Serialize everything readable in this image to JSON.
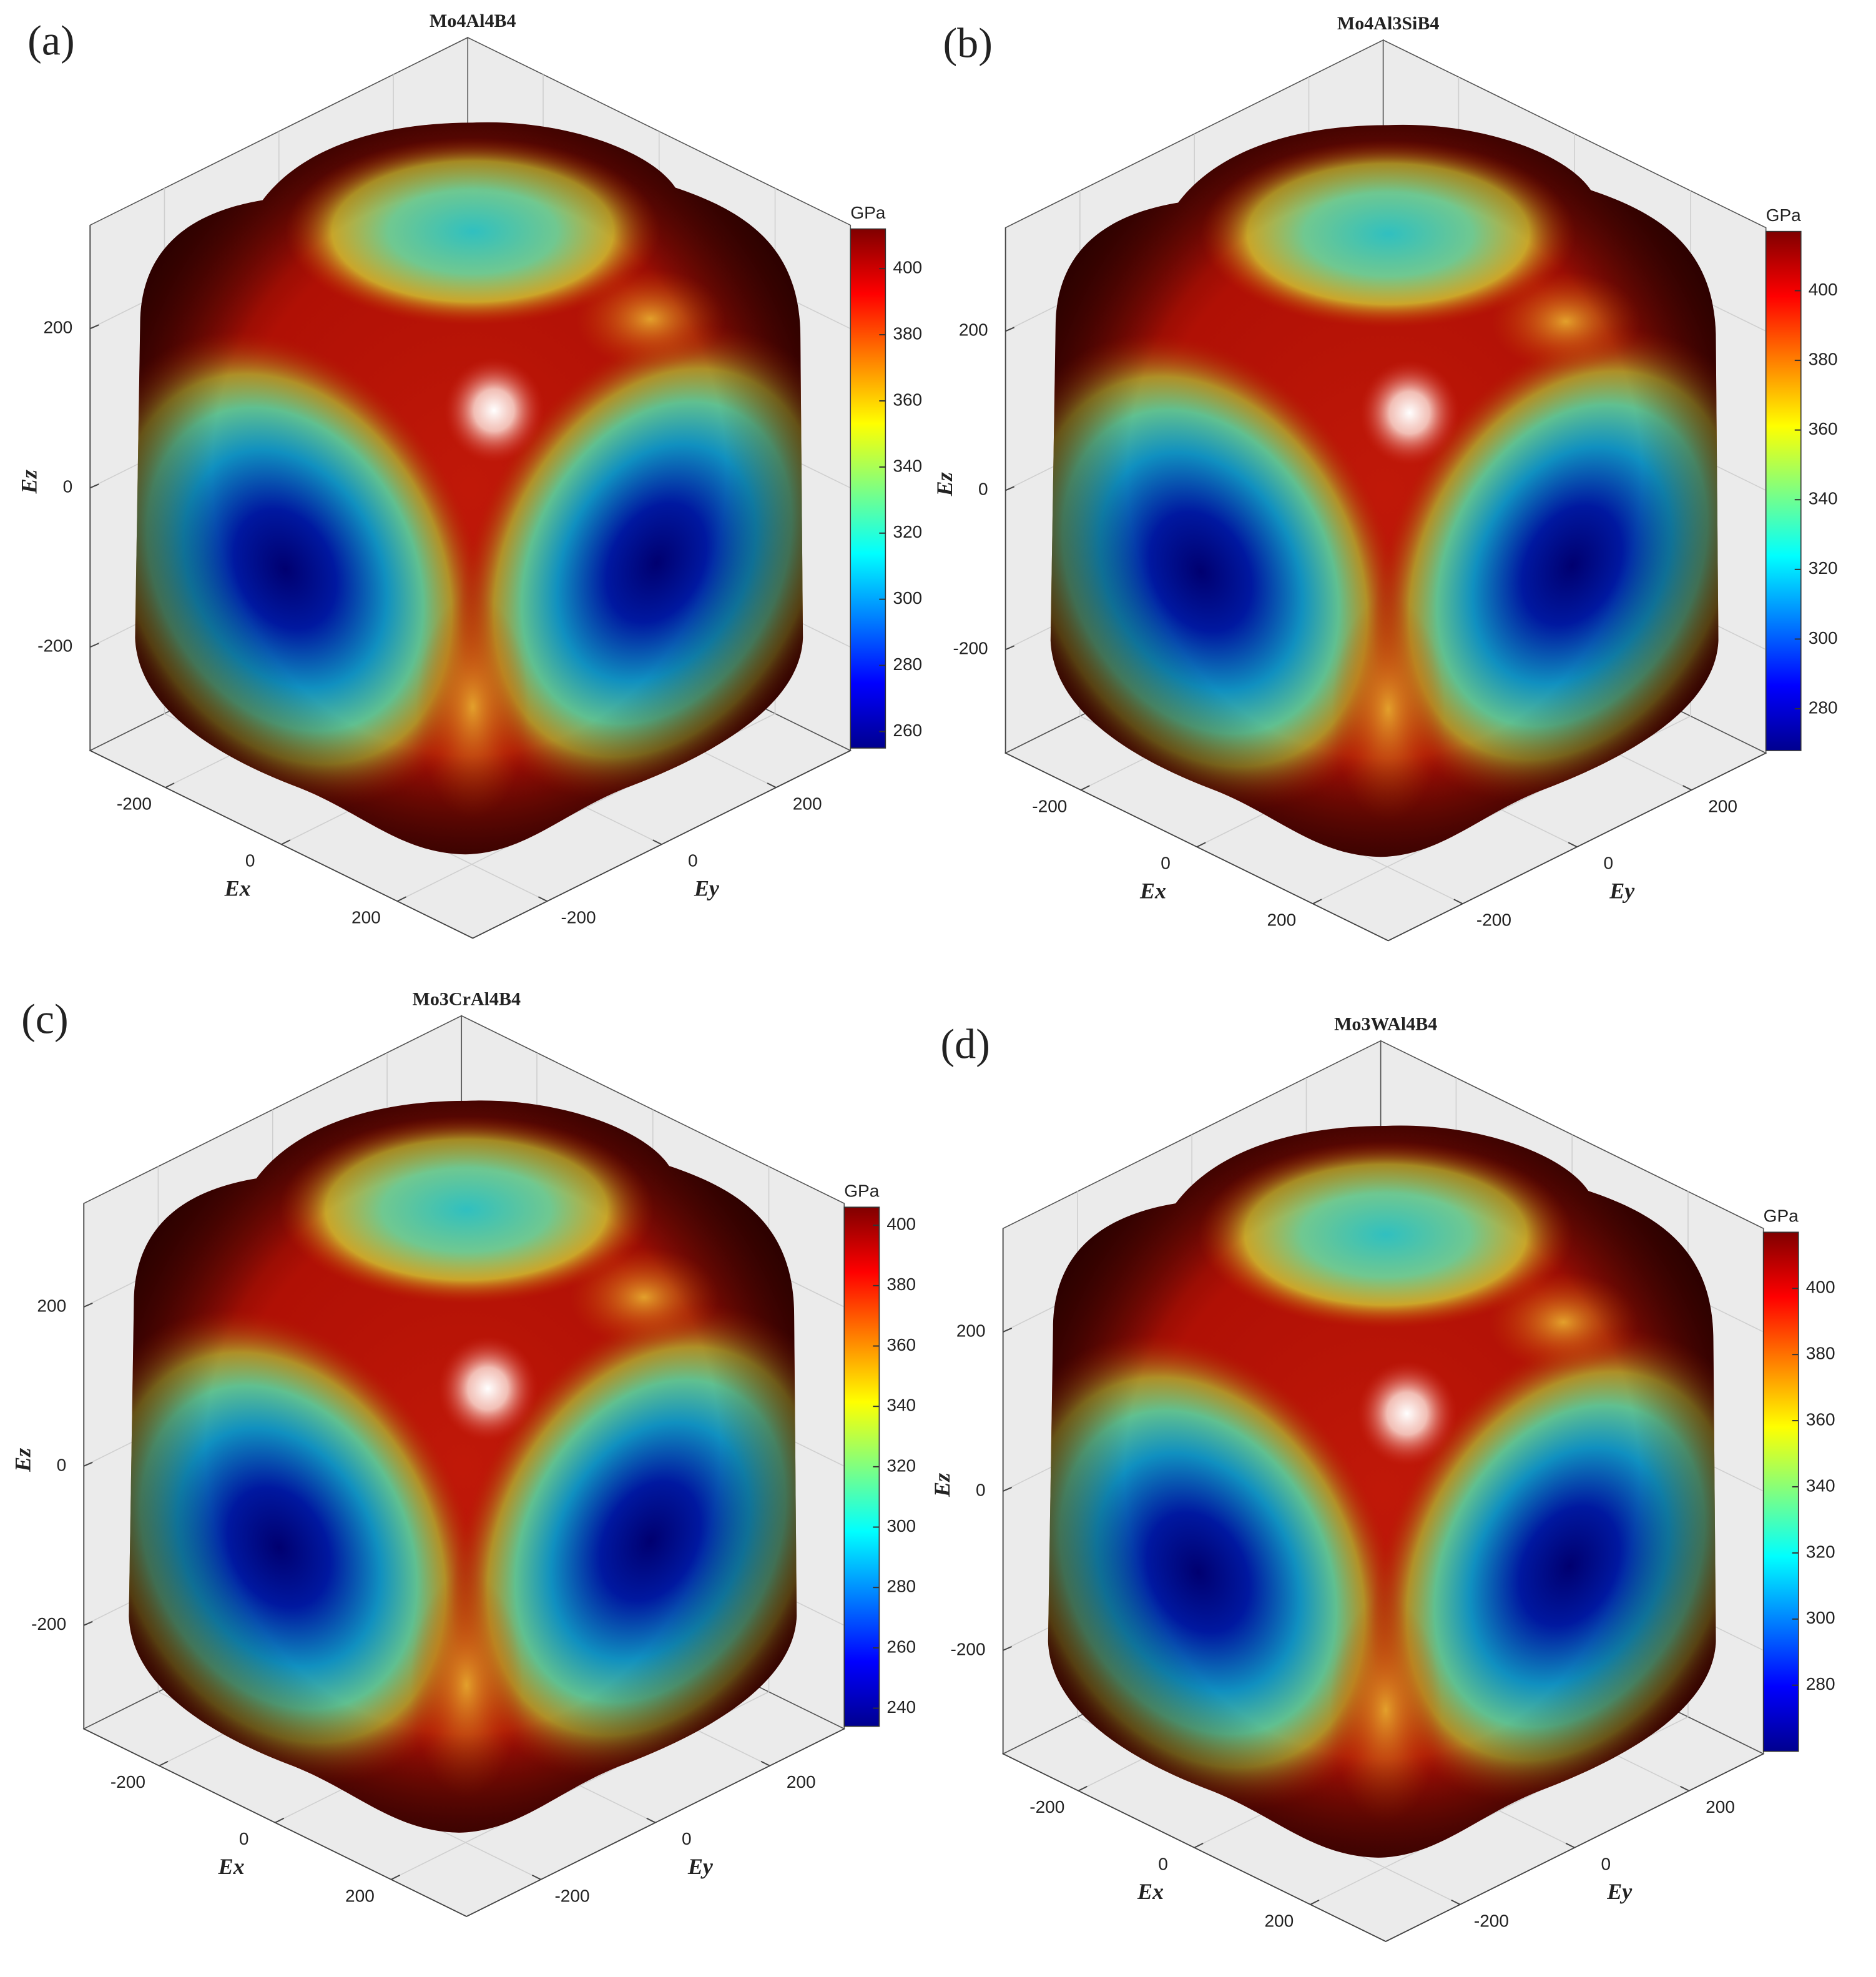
{
  "chart_data": [
    {
      "type": "surface3d",
      "panel_label": "(a)",
      "title": "Mo4Al4B4",
      "xlabel": "Ex",
      "ylabel": "Ey",
      "zlabel": "Ez",
      "xlim": [
        -330,
        330
      ],
      "ylim": [
        -330,
        330
      ],
      "zlim": [
        -330,
        330
      ],
      "xticks": [
        -200,
        0,
        200
      ],
      "yticks": [
        -200,
        0,
        200
      ],
      "zticks": [
        -200,
        0,
        200
      ],
      "grid": true,
      "colorbar": {
        "label": "GPa",
        "colormap": "jet",
        "clim": [
          255,
          412
        ],
        "ticks": [
          260,
          280,
          300,
          320,
          340,
          360,
          380,
          400
        ]
      }
    },
    {
      "type": "surface3d",
      "panel_label": "(b)",
      "title": "Mo4Al3SiB4",
      "xlabel": "Ex",
      "ylabel": "Ey",
      "zlabel": "Ez",
      "xlim": [
        -330,
        330
      ],
      "ylim": [
        -330,
        330
      ],
      "zlim": [
        -330,
        330
      ],
      "xticks": [
        -200,
        0,
        200
      ],
      "yticks": [
        -200,
        0,
        200
      ],
      "zticks": [
        -200,
        0,
        200
      ],
      "grid": true,
      "colorbar": {
        "label": "GPa",
        "colormap": "jet",
        "clim": [
          268,
          417
        ],
        "ticks": [
          280,
          300,
          320,
          340,
          360,
          380,
          400
        ]
      }
    },
    {
      "type": "surface3d",
      "panel_label": "(c)",
      "title": "Mo3CrAl4B4",
      "xlabel": "Ex",
      "ylabel": "Ey",
      "zlabel": "Ez",
      "xlim": [
        -330,
        330
      ],
      "ylim": [
        -330,
        330
      ],
      "zlim": [
        -330,
        330
      ],
      "xticks": [
        -200,
        0,
        200
      ],
      "yticks": [
        -200,
        0,
        200
      ],
      "zticks": [
        -200,
        0,
        200
      ],
      "grid": true,
      "colorbar": {
        "label": "GPa",
        "colormap": "jet",
        "clim": [
          234,
          406
        ],
        "ticks": [
          240,
          260,
          280,
          300,
          320,
          340,
          360,
          380,
          400
        ]
      }
    },
    {
      "type": "surface3d",
      "panel_label": "(d)",
      "title": "Mo3WAl4B4",
      "xlabel": "Ex",
      "ylabel": "Ey",
      "zlabel": "Ez",
      "xlim": [
        -330,
        330
      ],
      "ylim": [
        -330,
        330
      ],
      "zlim": [
        -330,
        330
      ],
      "xticks": [
        -200,
        0,
        200
      ],
      "yticks": [
        -200,
        0,
        200
      ],
      "zticks": [
        -200,
        0,
        200
      ],
      "grid": true,
      "colorbar": {
        "label": "GPa",
        "colormap": "jet",
        "clim": [
          260,
          417
        ],
        "ticks": [
          280,
          300,
          320,
          340,
          360,
          380,
          400
        ]
      }
    }
  ]
}
